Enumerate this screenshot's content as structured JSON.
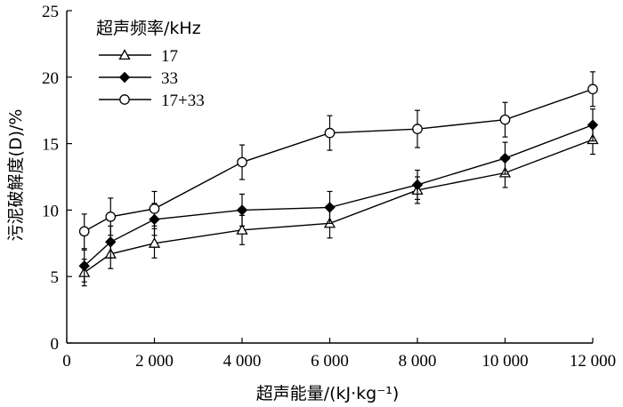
{
  "chart_data": {
    "type": "line",
    "xlabel": "超声能量/(kJ·kg⁻¹)",
    "ylabel": "污泥破解度(D)/%",
    "xlim": [
      0,
      12000
    ],
    "ylim": [
      0,
      25
    ],
    "x_ticks": [
      0,
      2000,
      4000,
      6000,
      8000,
      10000,
      12000
    ],
    "x_tick_labels": [
      "0",
      "2 000",
      "4 000",
      "6 000",
      "8 000",
      "10 000",
      "12 000"
    ],
    "y_ticks": [
      0,
      5,
      10,
      15,
      20,
      25
    ],
    "y_tick_labels": [
      "0",
      "5",
      "10",
      "15",
      "20",
      "25"
    ],
    "grid": false,
    "legend_title": "超声频率/kHz",
    "legend_position": "top-left",
    "x": [
      400,
      1000,
      2000,
      4000,
      6000,
      8000,
      10000,
      12000
    ],
    "series": [
      {
        "name": "17",
        "marker": "triangle-open",
        "values": [
          5.3,
          6.7,
          7.5,
          8.5,
          9.0,
          11.5,
          12.8,
          15.3
        ],
        "errors": [
          1.0,
          1.1,
          1.1,
          1.1,
          1.1,
          1.0,
          1.1,
          1.1
        ]
      },
      {
        "name": "33",
        "marker": "diamond-filled",
        "values": [
          5.8,
          7.6,
          9.3,
          10.0,
          10.2,
          11.9,
          13.9,
          16.4
        ],
        "errors": [
          1.2,
          1.2,
          1.2,
          1.2,
          1.2,
          1.1,
          1.2,
          1.2
        ]
      },
      {
        "name": "17+33",
        "marker": "circle-open",
        "values": [
          8.4,
          9.5,
          10.1,
          13.6,
          15.8,
          16.1,
          16.8,
          19.1
        ],
        "errors": [
          1.3,
          1.4,
          1.3,
          1.3,
          1.3,
          1.4,
          1.3,
          1.3
        ]
      }
    ]
  }
}
